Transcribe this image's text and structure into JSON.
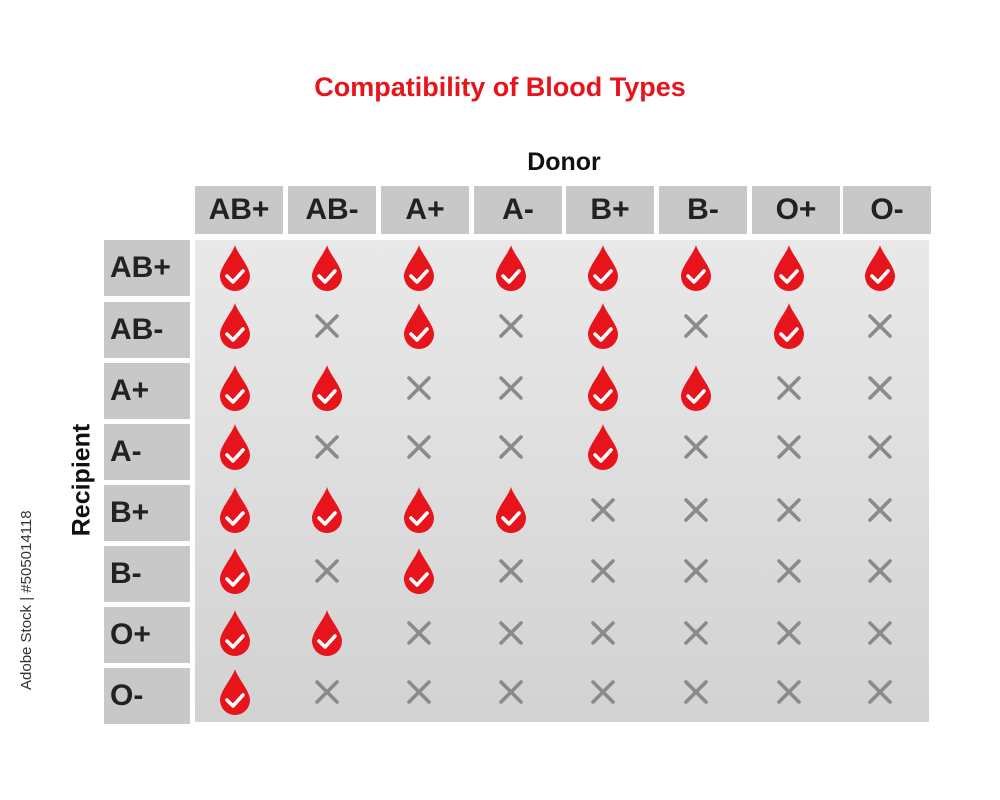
{
  "title": "Compatibility of Blood Types",
  "donor_label": "Donor",
  "recipient_label": "Recipient",
  "watermark": "Adobe Stock | #505014118",
  "colors": {
    "title": "#e8141c",
    "drop": "#e8141c",
    "cross": "#8a8a8a",
    "header_bg": "#c8c8c8"
  },
  "icons": {
    "compatible": "blood-drop-check-icon",
    "incompatible": "cross-icon"
  },
  "donors": [
    "AB+",
    "AB-",
    "A+",
    "A-",
    "B+",
    "B-",
    "O+",
    "O-"
  ],
  "recipients": [
    "AB+",
    "AB-",
    "A+",
    "A-",
    "B+",
    "B-",
    "O+",
    "O-"
  ],
  "compatibility": [
    [
      1,
      1,
      1,
      1,
      1,
      1,
      1,
      1
    ],
    [
      1,
      0,
      1,
      0,
      1,
      0,
      1,
      0
    ],
    [
      1,
      1,
      0,
      0,
      1,
      1,
      0,
      0
    ],
    [
      1,
      0,
      0,
      0,
      1,
      0,
      0,
      0
    ],
    [
      1,
      1,
      1,
      1,
      0,
      0,
      0,
      0
    ],
    [
      1,
      0,
      1,
      0,
      0,
      0,
      0,
      0
    ],
    [
      1,
      1,
      0,
      0,
      0,
      0,
      0,
      0
    ],
    [
      1,
      0,
      0,
      0,
      0,
      0,
      0,
      0
    ]
  ]
}
